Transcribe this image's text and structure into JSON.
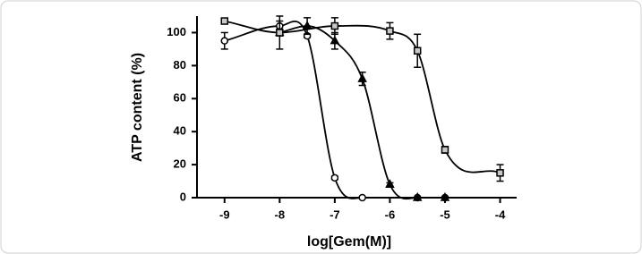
{
  "chart_data": {
    "type": "scatter",
    "xlabel": "log[Gem(M)]",
    "ylabel": "ATP content (%)",
    "xlim": [
      -9.5,
      -3.7
    ],
    "xticks": [
      -9,
      -8,
      -7,
      -6,
      -5,
      -4
    ],
    "ylim": [
      0,
      110
    ],
    "yticks": [
      0,
      20,
      40,
      60,
      80,
      100
    ],
    "curves": true,
    "series": [
      {
        "marker": "circle",
        "color": "#000000",
        "fill": "#ffffff",
        "x": [
          -9,
          -8,
          -7.5,
          -7,
          -6.5,
          -5.5,
          -5
        ],
        "values": [
          95,
          104,
          98,
          12,
          0,
          0,
          0
        ],
        "errors": [
          5,
          3,
          1,
          1,
          0,
          0,
          0
        ]
      },
      {
        "marker": "triangle",
        "color": "#000000",
        "fill": "#000000",
        "x": [
          -8,
          -7.5,
          -7,
          -6.5,
          -6,
          -5.5,
          -5
        ],
        "values": [
          100,
          104,
          95,
          72,
          8,
          0,
          0
        ],
        "errors": [
          2,
          5,
          5,
          4,
          1,
          0,
          0
        ]
      },
      {
        "marker": "square",
        "color": "#000000",
        "fill": "#c8c8c8",
        "x": [
          -9,
          -8,
          -7,
          -6,
          -5.5,
          -5,
          -4
        ],
        "values": [
          107,
          100,
          104,
          101,
          89,
          29,
          15
        ],
        "errors": [
          0,
          10,
          5,
          5,
          10,
          2,
          5
        ]
      }
    ]
  }
}
